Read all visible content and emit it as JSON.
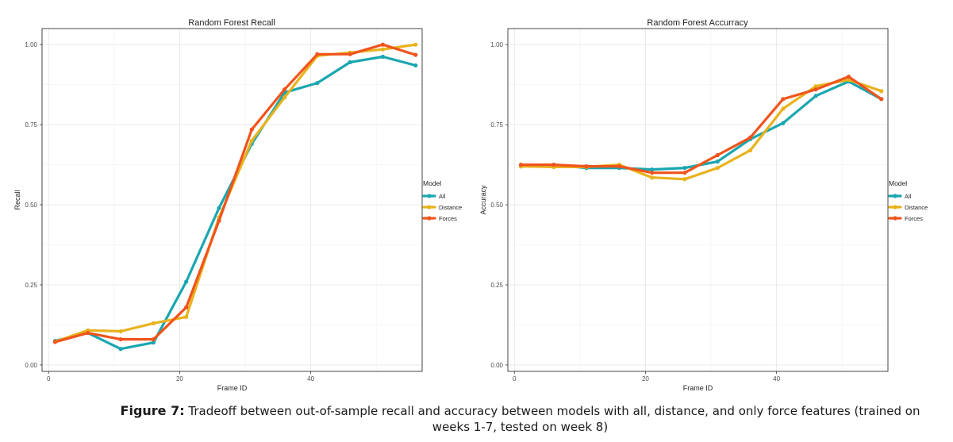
{
  "caption": {
    "label": "Figure 7:",
    "text": "Tradeoff between out-of-sample recall and accuracy between models with all,  distance, and only force features (trained on weeks 1-7, tested on week 8)"
  },
  "chart_data": [
    {
      "type": "line",
      "title": "Random Forest Recall",
      "xlabel": "Frame ID",
      "ylabel": "Recall",
      "xlim": [
        -1,
        57
      ],
      "ylim": [
        -0.02,
        1.05
      ],
      "xticks": [
        0,
        20,
        40
      ],
      "yticks": [
        0,
        0.25,
        0.5,
        0.75,
        1.0
      ],
      "xtick_labels": [
        "0",
        "20",
        "40"
      ],
      "ytick_labels": [
        "0.00",
        "0.25",
        "0.50",
        "0.75",
        "1.00"
      ],
      "grid": true,
      "legend": {
        "title": "Model",
        "position": "right"
      },
      "x": [
        1,
        6,
        11,
        16,
        21,
        26,
        31,
        36,
        41,
        46,
        51,
        56
      ],
      "series": [
        {
          "name": "All",
          "color": "#1aa6b0",
          "values": [
            0.075,
            0.1,
            0.05,
            0.07,
            0.26,
            0.49,
            0.69,
            0.85,
            0.88,
            0.945,
            0.962,
            0.935
          ]
        },
        {
          "name": "Distance",
          "color": "#e8b21c",
          "values": [
            0.073,
            0.108,
            0.105,
            0.13,
            0.15,
            0.46,
            0.7,
            0.835,
            0.965,
            0.975,
            0.985,
            1.0
          ]
        },
        {
          "name": "Forces",
          "color": "#f0541c",
          "values": [
            0.072,
            0.1,
            0.08,
            0.08,
            0.18,
            0.45,
            0.735,
            0.86,
            0.97,
            0.97,
            1.0,
            0.968
          ]
        }
      ]
    },
    {
      "type": "line",
      "title": "Random Forest Accurracy",
      "xlabel": "Frame ID",
      "ylabel": "Accuracy",
      "xlim": [
        -1,
        57
      ],
      "ylim": [
        -0.02,
        1.05
      ],
      "xticks": [
        0,
        20,
        40
      ],
      "yticks": [
        0,
        0.25,
        0.5,
        0.75,
        1.0
      ],
      "xtick_labels": [
        "0",
        "20",
        "40"
      ],
      "ytick_labels": [
        "0.00",
        "0.25",
        "0.50",
        "0.75",
        "1.00"
      ],
      "grid": true,
      "legend": {
        "title": "Model",
        "position": "right"
      },
      "x": [
        1,
        6,
        11,
        16,
        21,
        26,
        31,
        36,
        41,
        46,
        51,
        56
      ],
      "series": [
        {
          "name": "All",
          "color": "#1aa6b0",
          "values": [
            0.62,
            0.625,
            0.615,
            0.615,
            0.61,
            0.615,
            0.635,
            0.705,
            0.755,
            0.84,
            0.885,
            0.83
          ]
        },
        {
          "name": "Distance",
          "color": "#e8b21c",
          "values": [
            0.62,
            0.618,
            0.618,
            0.625,
            0.585,
            0.58,
            0.615,
            0.67,
            0.8,
            0.87,
            0.89,
            0.855
          ]
        },
        {
          "name": "Forces",
          "color": "#f0541c",
          "values": [
            0.625,
            0.625,
            0.62,
            0.62,
            0.6,
            0.6,
            0.655,
            0.71,
            0.83,
            0.86,
            0.9,
            0.83
          ]
        }
      ]
    }
  ]
}
